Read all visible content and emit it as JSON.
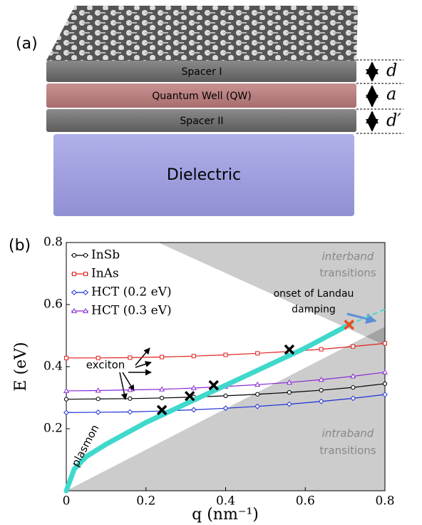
{
  "diagram": {
    "panel_label": "(a)",
    "layers": [
      "Spacer I",
      "Quantum Well (QW)",
      "Spacer II",
      "Dielectric"
    ],
    "thickness_labels": [
      "d",
      "a",
      "d′"
    ]
  },
  "chart_data": {
    "type": "line",
    "panel_label": "(b)",
    "x_label": "q (nm⁻¹)",
    "y_label": "E (eV)",
    "xlim": [
      0,
      0.8
    ],
    "ylim": [
      0,
      0.8
    ],
    "xticks": [
      0,
      0.2,
      0.4,
      0.6,
      0.8
    ],
    "yticks": [
      0.2,
      0.4,
      0.6,
      0.8
    ],
    "legend": "upper left",
    "x": [
      0,
      0.08,
      0.16,
      0.24,
      0.32,
      0.4,
      0.48,
      0.56,
      0.64,
      0.72,
      0.8
    ],
    "series": [
      {
        "name": "InSb",
        "color": "#000000",
        "marker": "circle",
        "values": [
          0.295,
          0.296,
          0.297,
          0.299,
          0.302,
          0.306,
          0.311,
          0.317,
          0.324,
          0.333,
          0.345
        ]
      },
      {
        "name": "InAs",
        "color": "#e0201b",
        "marker": "square",
        "values": [
          0.428,
          0.428,
          0.429,
          0.431,
          0.434,
          0.438,
          0.443,
          0.449,
          0.456,
          0.465,
          0.475
        ]
      },
      {
        "name": "HCT (0.2 eV)",
        "color": "#1d2fd6",
        "marker": "diamond",
        "values": [
          0.252,
          0.253,
          0.254,
          0.257,
          0.261,
          0.266,
          0.272,
          0.279,
          0.288,
          0.298,
          0.31
        ]
      },
      {
        "name": "HCT (0.3 eV)",
        "color": "#8a2bd6",
        "marker": "triangle",
        "values": [
          0.322,
          0.323,
          0.325,
          0.327,
          0.331,
          0.336,
          0.342,
          0.349,
          0.358,
          0.369,
          0.382
        ]
      }
    ],
    "plasmon": {
      "color": "#3fd9cc",
      "x": [
        0,
        0.02,
        0.05,
        0.1,
        0.2,
        0.3,
        0.4,
        0.5,
        0.6,
        0.71
      ],
      "values": [
        0,
        0.07,
        0.11,
        0.15,
        0.22,
        0.28,
        0.34,
        0.4,
        0.46,
        0.535
      ]
    },
    "plasmon_extension": {
      "x": [
        0.71,
        0.8
      ],
      "values": [
        0.535,
        0.585
      ]
    },
    "crossings": {
      "x": [
        0.24,
        0.31,
        0.37,
        0.56
      ],
      "values": [
        0.26,
        0.305,
        0.34,
        0.455
      ]
    },
    "landau_onset": {
      "x": 0.71,
      "value": 0.535,
      "color": "#f04a1c"
    },
    "annotations": [
      "interband",
      "transitions",
      "onset of Landau",
      "damping",
      "exciton",
      "plasmon",
      "intraband",
      "transitions"
    ]
  }
}
